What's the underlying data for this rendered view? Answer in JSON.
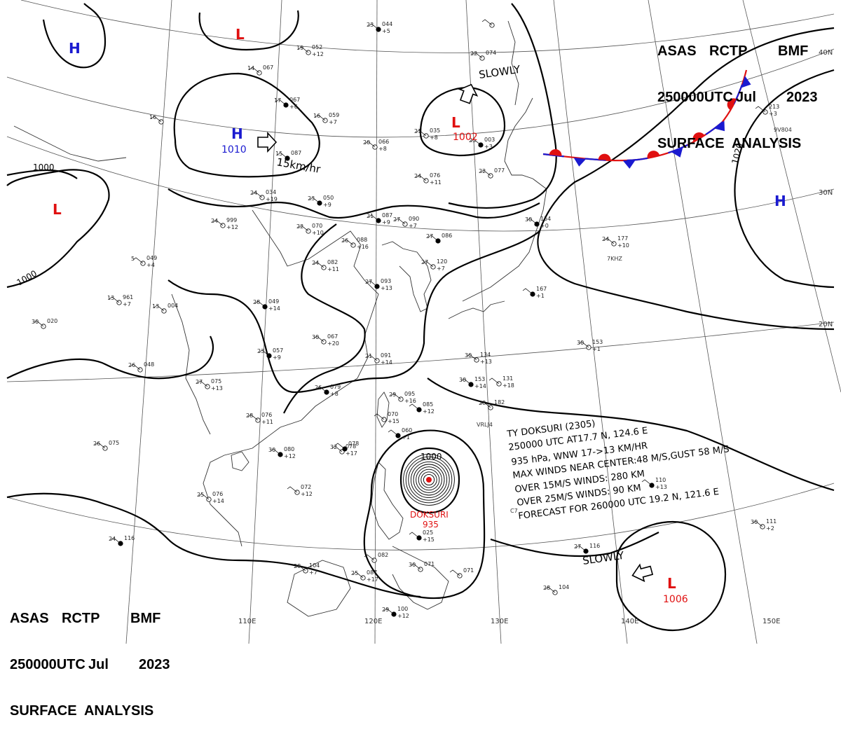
{
  "header_top": {
    "line1": [
      "ASAS",
      "RCTP",
      "BMF"
    ],
    "line2": [
      "250000UTC",
      "Jul",
      "2023"
    ],
    "line3": "SURFACE  ANALYSIS"
  },
  "header_bottom": {
    "line1": [
      "ASAS",
      "RCTP",
      "BMF"
    ],
    "line2": [
      "250000UTC",
      "Jul",
      "2023"
    ],
    "line3": "SURFACE  ANALYSIS"
  },
  "longitude_labels": [
    "110E",
    "120E",
    "130E",
    "140E",
    "150E"
  ],
  "latitude_labels": [
    "40N",
    "30N",
    "20N"
  ],
  "isobar_labels": [
    "1000",
    "1000",
    "1020",
    "1000"
  ],
  "pressure_systems": [
    {
      "symbol": "H",
      "value": "",
      "color": "#1a1ad0"
    },
    {
      "symbol": "L",
      "value": "",
      "color": "#e01010"
    },
    {
      "symbol": "H",
      "value": "1010",
      "color": "#1a1ad0"
    },
    {
      "symbol": "L",
      "value": "",
      "color": "#e01010"
    },
    {
      "symbol": "L",
      "value": "1002",
      "color": "#e01010"
    },
    {
      "symbol": "H",
      "value": "",
      "color": "#1a1ad0"
    },
    {
      "symbol": "L",
      "value": "1006",
      "color": "#e01010"
    }
  ],
  "motion_labels": [
    "SLOWLY",
    "15km/hr",
    "SLOWLY"
  ],
  "typhoon": {
    "name": "DOKSURI",
    "pressure": "935",
    "center_isobar": "1000",
    "bulletin": [
      "TY  DOKSURI  (2305)",
      "250000 UTC  AT17.7 N, 124.6 E",
      "935 hPa, WNW  17->13 KM/HR",
      "MAX WINDS NEAR CENTER:48 M/S,GUST 58 M/S",
      "OVER 15M/S WINDS: 280 KM",
      "OVER 25M/S WINDS: 90 KM",
      "FORECAST FOR 260000 UTC 19.2 N, 121.6 E"
    ]
  },
  "stations": [
    {
      "t": "23",
      "p": "044",
      "d": "+5"
    },
    {
      "t": "19",
      "p": "052",
      "d": "+12"
    },
    {
      "t": "14",
      "p": "067",
      "d": ""
    },
    {
      "t": "17",
      "p": "067",
      "d": "+6"
    },
    {
      "t": "16",
      "p": "059",
      "d": "+7"
    },
    {
      "t": "16",
      "p": "",
      "d": ""
    },
    {
      "t": "15",
      "p": "087",
      "d": ""
    },
    {
      "t": "20",
      "p": "066",
      "d": "+8"
    },
    {
      "t": "24",
      "p": "034",
      "d": "+19"
    },
    {
      "t": "23",
      "p": "050",
      "d": "+9"
    },
    {
      "t": "24",
      "p": "999",
      "d": "+12"
    },
    {
      "t": "22",
      "p": "070",
      "d": "+10"
    },
    {
      "t": "21",
      "p": "087",
      "d": "+9"
    },
    {
      "t": "26",
      "p": "088",
      "d": "+16"
    },
    {
      "t": "27",
      "p": "090",
      "d": "+7"
    },
    {
      "t": "27",
      "p": "086",
      "d": ""
    },
    {
      "t": "24",
      "p": "082",
      "d": "+11"
    },
    {
      "t": "5",
      "p": "049",
      "d": "+4"
    },
    {
      "t": "27",
      "p": "093",
      "d": "+13"
    },
    {
      "t": "13",
      "p": "961",
      "d": "+7"
    },
    {
      "t": "13",
      "p": "004",
      "d": ""
    },
    {
      "t": "28",
      "p": "049",
      "d": "+14"
    },
    {
      "t": "30",
      "p": "020",
      "d": ""
    },
    {
      "t": "30",
      "p": "067",
      "d": "+20"
    },
    {
      "t": "23",
      "p": "057",
      "d": "+9"
    },
    {
      "t": "26",
      "p": "048",
      "d": ""
    },
    {
      "t": "27",
      "p": "075",
      "d": "+13"
    },
    {
      "t": "26",
      "p": "079",
      "d": "+8"
    },
    {
      "t": "21",
      "p": "091",
      "d": "+14"
    },
    {
      "t": "29",
      "p": "095",
      "d": "+16"
    },
    {
      "t": "",
      "p": "085",
      "d": "+12"
    },
    {
      "t": "28",
      "p": "076",
      "d": "+11"
    },
    {
      "t": "26",
      "p": "075",
      "d": ""
    },
    {
      "t": "30",
      "p": "080",
      "d": "+12"
    },
    {
      "t": "32",
      "p": "078",
      "d": "+17"
    },
    {
      "t": "",
      "p": "070",
      "d": "+15"
    },
    {
      "t": "",
      "p": "060",
      "d": "+1"
    },
    {
      "t": "25",
      "p": "076",
      "d": "+14"
    },
    {
      "t": "",
      "p": "072",
      "d": "+12"
    },
    {
      "t": "24",
      "p": "116",
      "d": ""
    },
    {
      "t": "28",
      "p": "104",
      "d": "+7"
    },
    {
      "t": "25",
      "p": "087",
      "d": "+17"
    },
    {
      "t": "29",
      "p": "100",
      "d": "+12"
    },
    {
      "t": "",
      "p": "082",
      "d": ""
    },
    {
      "t": "30",
      "p": "071",
      "d": ""
    },
    {
      "t": "",
      "p": "025",
      "d": "+15"
    },
    {
      "t": "21",
      "p": "035",
      "d": "+8"
    },
    {
      "t": "22",
      "p": "074",
      "d": ""
    },
    {
      "t": "25",
      "p": "003",
      "d": "+3"
    },
    {
      "t": "24",
      "p": "076",
      "d": "+11"
    },
    {
      "t": "22",
      "p": "077",
      "d": ""
    },
    {
      "t": "30",
      "p": "154",
      "d": "+0"
    },
    {
      "t": "27",
      "p": "120",
      "d": "+7"
    },
    {
      "t": "24",
      "p": "177",
      "d": "+10"
    },
    {
      "t": "",
      "p": "167",
      "d": "+1"
    },
    {
      "t": "30",
      "p": "153",
      "d": "+1"
    },
    {
      "t": "30",
      "p": "134",
      "d": "+13"
    },
    {
      "t": "30",
      "p": "153",
      "d": "+14"
    },
    {
      "t": "",
      "p": "131",
      "d": "+18"
    },
    {
      "t": "28",
      "p": "182",
      "d": ""
    },
    {
      "t": "27",
      "p": "116",
      "d": ""
    },
    {
      "t": "28",
      "p": "104",
      "d": ""
    },
    {
      "t": "30",
      "p": "111",
      "d": "+2"
    },
    {
      "t": "",
      "p": "110",
      "d": "+13"
    },
    {
      "t": "",
      "p": "213",
      "d": "+3"
    },
    {
      "t": "",
      "p": "071",
      "d": ""
    },
    {
      "t": "",
      "p": "078",
      "d": ""
    },
    {
      "t": "",
      "p": "",
      "d": ""
    }
  ],
  "station_codes": [
    "7KHZ",
    "9V804",
    "VRLJ4",
    "C7"
  ],
  "colors": {
    "high": "#1a1ad0",
    "low": "#e01010",
    "front_warm": "#e01010",
    "front_cold": "#1a1ad0",
    "typhoon": "#e01010"
  }
}
